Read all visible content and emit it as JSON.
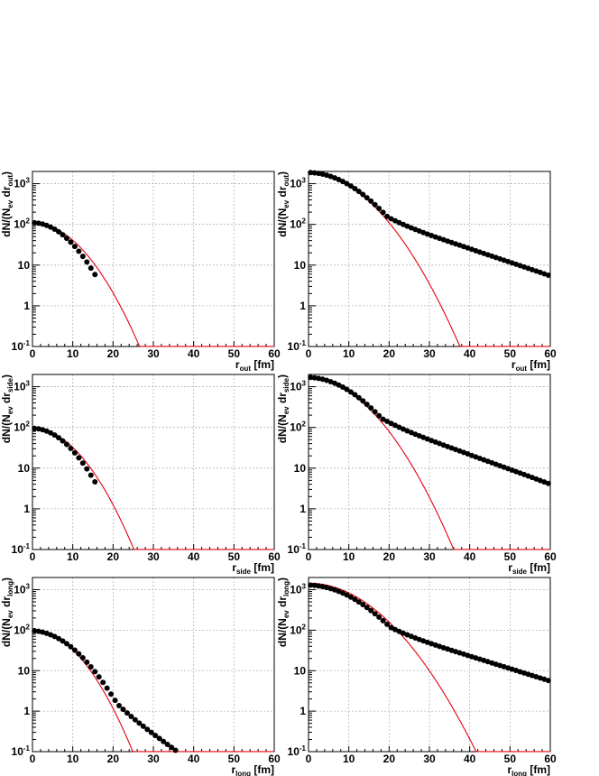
{
  "chart_data": [
    {
      "type": "scatter",
      "panel": "out-low",
      "xlabel_main": "r",
      "xlabel_sub": "out",
      "xlabel_unit": " [fm]",
      "ylabel_main": "dN/(N",
      "ylabel_sub1": "ev",
      "ylabel_mid": " dr",
      "ylabel_sub2": "out",
      "ylabel_end": ")",
      "xlim": [
        0,
        60
      ],
      "ylim": [
        0.1,
        2000
      ],
      "yscale": "log",
      "grid": true,
      "x_ticks": [
        "0",
        "10",
        "20",
        "30",
        "40",
        "50",
        "60"
      ],
      "points": {
        "kind": "gaussian",
        "A": 110,
        "sigma": 6.4,
        "xmax": 16.3,
        "step": 1.0
      },
      "fit": {
        "kind": "gaussian",
        "A": 110,
        "sigma": 7.1,
        "color": "#e8000b"
      }
    },
    {
      "type": "scatter",
      "panel": "out-high",
      "xlabel_main": "r",
      "xlabel_sub": "out",
      "xlabel_unit": " [fm]",
      "ylabel_main": "dN/(N",
      "ylabel_sub1": "ev",
      "ylabel_mid": " dr",
      "ylabel_sub2": "out",
      "ylabel_end": ")",
      "xlim": [
        0,
        60
      ],
      "ylim": [
        0.1,
        2000
      ],
      "yscale": "log",
      "grid": true,
      "x_ticks": [
        "0",
        "10",
        "20",
        "30",
        "40",
        "50",
        "60"
      ],
      "points": {
        "kind": "gauss_plus_tail",
        "A": 1750,
        "sigma": 8.5,
        "B": 550,
        "lambda": 13.0,
        "xmax": 60,
        "step": 1.0
      },
      "fit": {
        "kind": "gaussian",
        "A": 1750,
        "sigma": 8.5,
        "color": "#e8000b"
      }
    },
    {
      "type": "scatter",
      "panel": "side-low",
      "xlabel_main": "r",
      "xlabel_sub": "side",
      "xlabel_unit": " [fm]",
      "ylabel_main": "dN/(N",
      "ylabel_sub1": "ev",
      "ylabel_mid": " dr",
      "ylabel_sub2": "side",
      "ylabel_end": ")",
      "xlim": [
        0,
        60
      ],
      "ylim": [
        0.1,
        2000
      ],
      "yscale": "log",
      "grid": true,
      "x_ticks": [
        "0",
        "10",
        "20",
        "30",
        "40",
        "50",
        "60"
      ],
      "points": {
        "kind": "gaussian",
        "A": 95,
        "sigma": 6.3,
        "xmax": 16.3,
        "step": 1.0
      },
      "fit": {
        "kind": "gaussian",
        "A": 95,
        "sigma": 6.8,
        "color": "#e8000b"
      }
    },
    {
      "type": "scatter",
      "panel": "side-high",
      "xlabel_main": "r",
      "xlabel_sub": "side",
      "xlabel_unit": " [fm]",
      "ylabel_main": "dN/(N",
      "ylabel_sub1": "ev",
      "ylabel_mid": " dr",
      "ylabel_sub2": "side",
      "ylabel_end": ")",
      "xlim": [
        0,
        60
      ],
      "ylim": [
        0.1,
        2000
      ],
      "yscale": "log",
      "grid": true,
      "x_ticks": [
        "0",
        "10",
        "20",
        "30",
        "40",
        "50",
        "60"
      ],
      "points": {
        "kind": "gauss_plus_tail",
        "A": 1550,
        "sigma": 8.2,
        "B": 600,
        "lambda": 12.0,
        "xmax": 60,
        "step": 1.0
      },
      "fit": {
        "kind": "gaussian",
        "A": 1550,
        "sigma": 8.2,
        "color": "#e8000b"
      }
    },
    {
      "type": "scatter",
      "panel": "long-low",
      "xlabel_main": "r",
      "xlabel_sub": "long",
      "xlabel_unit": " [fm]",
      "ylabel_main": "dN/(N",
      "ylabel_sub1": "ev",
      "ylabel_mid": " dr",
      "ylabel_sub2": "long",
      "ylabel_end": ")",
      "xlim": [
        0,
        60
      ],
      "ylim": [
        0.1,
        2000
      ],
      "yscale": "log",
      "grid": true,
      "x_ticks": [
        "0",
        "10",
        "20",
        "30",
        "40",
        "50",
        "60"
      ],
      "points": {
        "kind": "gauss_plus_tail",
        "A": 88,
        "sigma": 7.2,
        "B": 40,
        "lambda": 6.0,
        "xmax": 44,
        "step": 1.0
      },
      "fit": {
        "kind": "gaussian",
        "A": 100,
        "sigma": 6.7,
        "color": "#e8000b"
      }
    },
    {
      "type": "scatter",
      "panel": "long-high",
      "xlabel_main": "r",
      "xlabel_sub": "long",
      "xlabel_unit": " [fm]",
      "ylabel_main": "dN/(N",
      "ylabel_sub1": "ev",
      "ylabel_mid": " dr",
      "ylabel_sub2": "long",
      "ylabel_end": ")",
      "xlim": [
        0,
        60
      ],
      "ylim": [
        0.1,
        2000
      ],
      "yscale": "log",
      "grid": true,
      "x_ticks": [
        "0",
        "10",
        "20",
        "30",
        "40",
        "50",
        "60"
      ],
      "points": {
        "kind": "gauss_plus_tail",
        "A": 1200,
        "sigma": 9.0,
        "B": 400,
        "lambda": 14.0,
        "xmax": 60,
        "step": 1.0
      },
      "fit": {
        "kind": "gaussian",
        "A": 1450,
        "sigma": 9.5,
        "color": "#e8000b"
      }
    }
  ],
  "y_ticks": [
    {
      "value": 0.1,
      "base": "10",
      "exp": "-1"
    },
    {
      "value": 1,
      "base": "1",
      "exp": ""
    },
    {
      "value": 10,
      "base": "10",
      "exp": ""
    },
    {
      "value": 100,
      "base": "10",
      "exp": "2"
    },
    {
      "value": 1000,
      "base": "10",
      "exp": "3"
    }
  ],
  "colors": {
    "points": "#000000",
    "fit": "#e8000b",
    "grid": "#b4b4b4",
    "frame": "#000000"
  }
}
